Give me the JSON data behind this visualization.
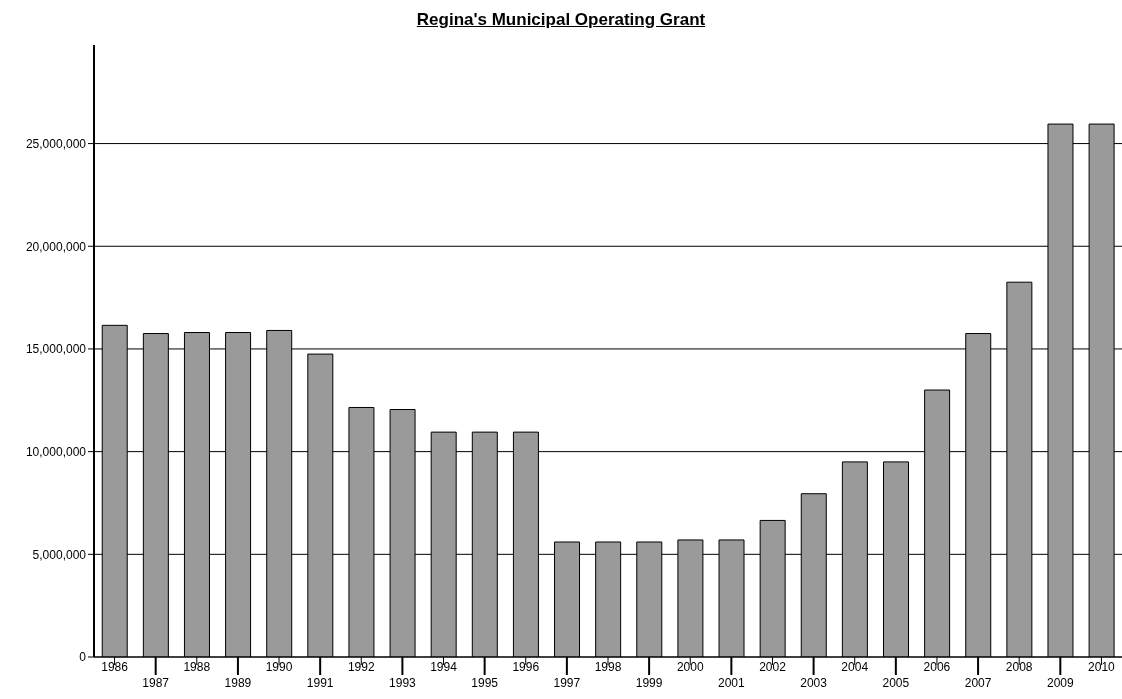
{
  "chart_data": {
    "type": "bar",
    "title": "Regina's Municipal Operating Grant",
    "categories": [
      "1986",
      "1987",
      "1988",
      "1989",
      "1990",
      "1991",
      "1992",
      "1993",
      "1994",
      "1995",
      "1996",
      "1997",
      "1998",
      "1999",
      "2000",
      "2001",
      "2002",
      "2003",
      "2004",
      "2005",
      "2006",
      "2007",
      "2008",
      "2009",
      "2010"
    ],
    "values": [
      16150000,
      15750000,
      15800000,
      15800000,
      15900000,
      14750000,
      12150000,
      12050000,
      10950000,
      10950000,
      10950000,
      5600000,
      5600000,
      5600000,
      5700000,
      5700000,
      6650000,
      7950000,
      9500000,
      9500000,
      13000000,
      15750000,
      18250000,
      25950000,
      25950000
    ],
    "color": "#9a9a9a",
    "ylim": [
      0,
      29800000
    ],
    "yticks": [
      {
        "value": 0,
        "label": "0"
      },
      {
        "value": 5000000,
        "label": "5,000,000"
      },
      {
        "value": 10000000,
        "label": "10,000,000"
      },
      {
        "value": 15000000,
        "label": "15,000,000"
      },
      {
        "value": 20000000,
        "label": "20,000,000"
      },
      {
        "value": 25000000,
        "label": "25,000,000"
      }
    ],
    "grid": "y"
  }
}
